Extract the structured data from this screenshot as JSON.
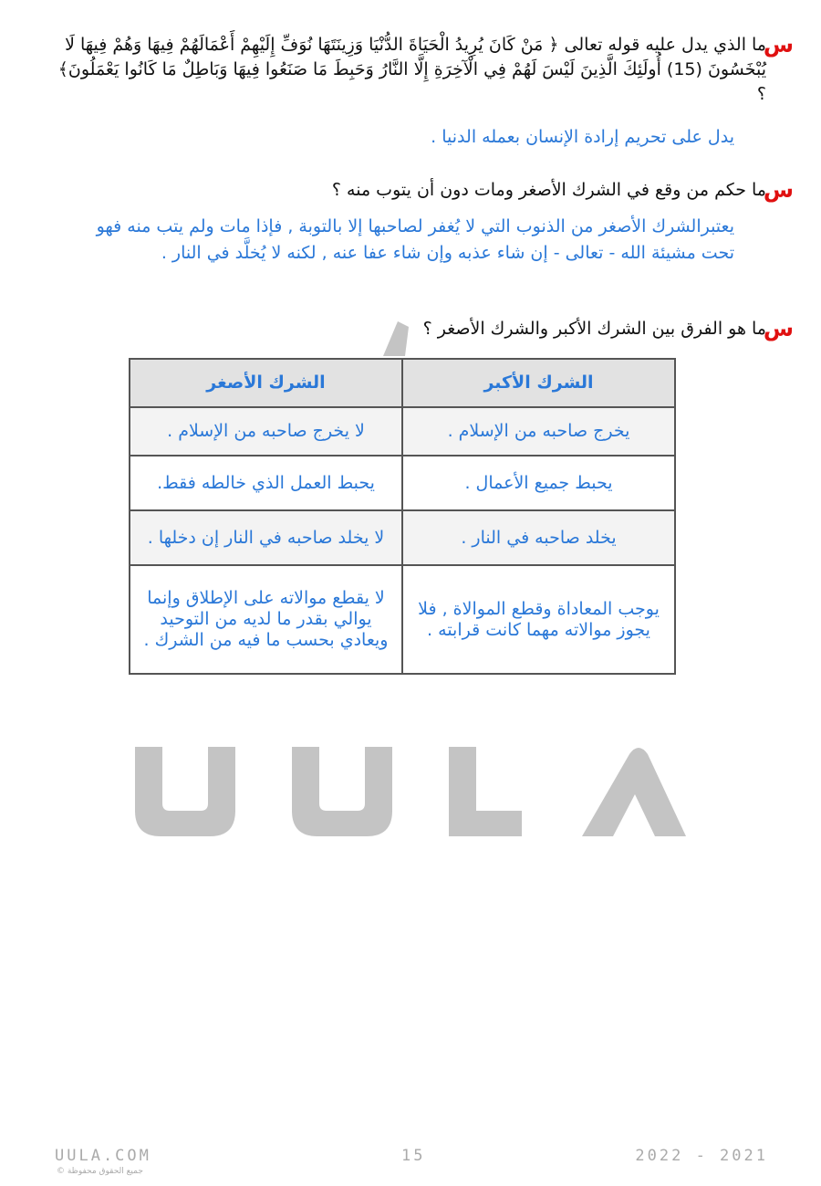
{
  "questions": [
    {
      "marker": "س",
      "text": "ما الذي يدل عليه قوله تعالى ﴿ مَنْ كَانَ يُرِيدُ الْحَيَاةَ الدُّنْيَا وَزِينَتَهَا نُوَفِّ إِلَيْهِمْ أَعْمَالَهُمْ فِيهَا وَهُمْ فِيهَا لَا يُبْخَسُونَ (15) أُولَئِكَ الَّذِينَ لَيْسَ لَهُمْ فِي الْآخِرَةِ إِلَّا النَّارُ وَحَبِطَ مَا صَنَعُوا فِيهَا وَبَاطِلٌ مَا كَانُوا يَعْمَلُونَ﴾ ؟",
      "answer": "يدل على تحريم إرادة الإنسان بعمله الدنيا ."
    },
    {
      "marker": "س",
      "text": "ما حكم من وقع في الشرك الأصغر ومات دون أن يتوب منه ؟",
      "answer": "يعتبرالشرك الأصغر من الذنوب التي لا يُغفر لصاحبها إلا بالتوبة , فإذا مات ولم يتب منه فهو تحت مشيئة الله - تعالى - إن شاء عذبه وإن شاء عفا عنه , لكنه لا يُخلَّد في النار ."
    },
    {
      "marker": "س",
      "text": "ما هو الفرق بين الشرك الأكبر والشرك الأصغر ؟"
    }
  ],
  "table": {
    "headers": [
      "الشرك الأكبر",
      "الشرك الأصغر"
    ],
    "rows": [
      [
        "يخرج صاحبه من الإسلام .",
        "لا يخرج صاحبه من الإسلام ."
      ],
      [
        "يحبط جميع الأعمال .",
        "يحبط العمل الذي خالطه فقط."
      ],
      [
        "يخلد صاحبه في النار .",
        "لا يخلد صاحبه في النار إن دخلها ."
      ],
      [
        "يوجب المعاداة وقطع الموالاة , فلا يجوز موالاته مهما كانت قرابته .",
        "لا يقطع موالاته على الإطلاق وإنما يوالي بقدر ما لديه من التوحيد ويعادي بحسب ما فيه من الشرك ."
      ]
    ]
  },
  "watermark": "UULA",
  "footer": {
    "site": "UULA.COM",
    "rights": "جميع الحقوق محفوظة ©",
    "page": "15",
    "years": "2022 - 2021"
  },
  "colors": {
    "question_marker": "#e01010",
    "answer": "#2a78d8",
    "watermark": "#c4c4c4"
  }
}
